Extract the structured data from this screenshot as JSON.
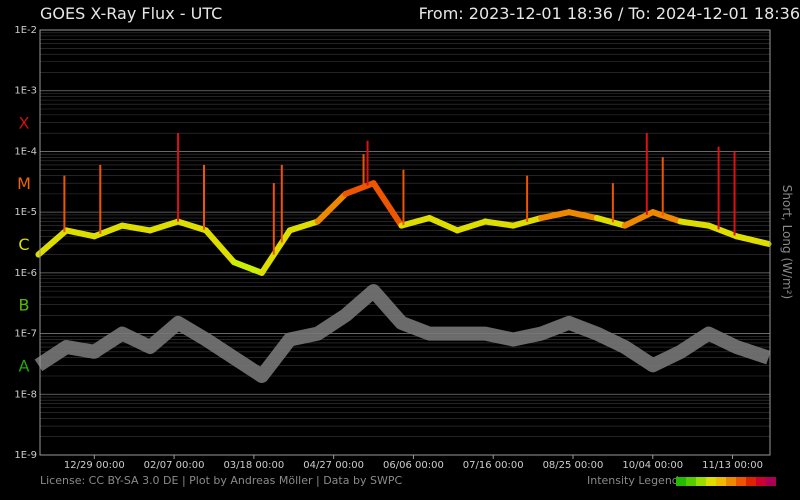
{
  "header": {
    "title": "GOES X-Ray Flux - UTC",
    "range": "From: 2023-12-01 18:36  /  To: 2024-12-01 18:36"
  },
  "footer": {
    "license": "License: CC BY-SA 3.0 DE | Plot by Andreas Möller | Data by SWPC",
    "legend_label": "Intensity Legend",
    "legend_colors": [
      "#22bb00",
      "#55cc00",
      "#99dd00",
      "#dddd00",
      "#eebb00",
      "#ee8800",
      "#ee5500",
      "#dd2200",
      "#cc0033",
      "#aa0055"
    ]
  },
  "chart_data": {
    "type": "line",
    "title": "GOES X-Ray Flux - UTC",
    "ylabel": "Short, Long (W/m²)",
    "yscale": "log",
    "ylim": [
      1e-09,
      0.01
    ],
    "xlim": [
      "2023-12-01 18:36",
      "2024-12-01 18:36"
    ],
    "y_tick_labels": [
      "1E-2",
      "1E-3",
      "1E-4",
      "1E-5",
      "1E-6",
      "1E-7",
      "1E-8",
      "1E-9"
    ],
    "flare_classes": [
      {
        "label": "X",
        "flux": 0.0003,
        "color": "#cc1111"
      },
      {
        "label": "M",
        "flux": 3e-05,
        "color": "#ee6600"
      },
      {
        "label": "C",
        "flux": 3e-06,
        "color": "#dddd00"
      },
      {
        "label": "B",
        "flux": 3e-07,
        "color": "#55bb00"
      },
      {
        "label": "A",
        "flux": 3e-08,
        "color": "#22aa00"
      }
    ],
    "x_ticks": [
      {
        "date": "2023-12-29",
        "label": "12/29 00:00"
      },
      {
        "date": "2024-02-07",
        "label": "02/07 00:00"
      },
      {
        "date": "2024-03-18",
        "label": "03/18 00:00"
      },
      {
        "date": "2024-04-27",
        "label": "04/27 00:00"
      },
      {
        "date": "2024-06-06",
        "label": "06/06 00:00"
      },
      {
        "date": "2024-07-16",
        "label": "07/16 00:00"
      },
      {
        "date": "2024-08-25",
        "label": "08/25 00:00"
      },
      {
        "date": "2024-10-04",
        "label": "10/04 00:00"
      },
      {
        "date": "2024-11-13",
        "label": "11/13 00:00"
      }
    ],
    "grid": true,
    "series": [
      {
        "channel": "long",
        "color_by_intensity": true,
        "x": [
          "2023-12-01",
          "2023-12-15",
          "2023-12-29",
          "2024-01-12",
          "2024-01-26",
          "2024-02-09",
          "2024-02-23",
          "2024-03-08",
          "2024-03-22",
          "2024-04-05",
          "2024-04-19",
          "2024-05-03",
          "2024-05-17",
          "2024-05-31",
          "2024-06-14",
          "2024-06-28",
          "2024-07-12",
          "2024-07-26",
          "2024-08-09",
          "2024-08-23",
          "2024-09-06",
          "2024-09-20",
          "2024-10-04",
          "2024-10-18",
          "2024-11-01",
          "2024-11-15",
          "2024-12-01"
        ],
        "y": [
          2e-06,
          5e-06,
          4e-06,
          6e-06,
          5e-06,
          7e-06,
          5e-06,
          1.5e-06,
          1e-06,
          5e-06,
          7e-06,
          2e-05,
          3e-05,
          6e-06,
          8e-06,
          5e-06,
          7e-06,
          6e-06,
          8e-06,
          1e-05,
          8e-06,
          6e-06,
          1e-05,
          7e-06,
          6e-06,
          4e-06,
          3e-06
        ],
        "peaks": [
          {
            "x": "2023-12-14",
            "y": 4e-05
          },
          {
            "x": "2024-01-01",
            "y": 6e-05
          },
          {
            "x": "2024-02-09",
            "y": 0.0002
          },
          {
            "x": "2024-02-22",
            "y": 6e-05
          },
          {
            "x": "2024-03-28",
            "y": 3e-05
          },
          {
            "x": "2024-04-01",
            "y": 6e-05
          },
          {
            "x": "2024-05-14",
            "y": 0.00015
          },
          {
            "x": "2024-05-12",
            "y": 9e-05
          },
          {
            "x": "2024-06-01",
            "y": 5e-05
          },
          {
            "x": "2024-08-02",
            "y": 4e-05
          },
          {
            "x": "2024-09-14",
            "y": 3e-05
          },
          {
            "x": "2024-10-01",
            "y": 0.0002
          },
          {
            "x": "2024-10-09",
            "y": 8e-05
          },
          {
            "x": "2024-11-06",
            "y": 0.00012
          },
          {
            "x": "2024-11-14",
            "y": 0.0001
          }
        ]
      },
      {
        "channel": "short",
        "color": "#777777",
        "x": [
          "2023-12-01",
          "2023-12-15",
          "2023-12-29",
          "2024-01-12",
          "2024-01-26",
          "2024-02-09",
          "2024-02-23",
          "2024-03-08",
          "2024-03-22",
          "2024-04-05",
          "2024-04-19",
          "2024-05-03",
          "2024-05-17",
          "2024-05-31",
          "2024-06-14",
          "2024-06-28",
          "2024-07-12",
          "2024-07-26",
          "2024-08-09",
          "2024-08-23",
          "2024-09-06",
          "2024-09-20",
          "2024-10-04",
          "2024-10-18",
          "2024-11-01",
          "2024-11-15",
          "2024-12-01"
        ],
        "y": [
          3e-08,
          6e-08,
          5e-08,
          1e-07,
          6e-08,
          1.5e-07,
          8e-08,
          4e-08,
          2e-08,
          8e-08,
          1e-07,
          2e-07,
          5e-07,
          1.5e-07,
          1e-07,
          1e-07,
          1e-07,
          8e-08,
          1e-07,
          1.5e-07,
          1e-07,
          6e-08,
          3e-08,
          5e-08,
          1e-07,
          6e-08,
          4e-08
        ]
      }
    ]
  }
}
